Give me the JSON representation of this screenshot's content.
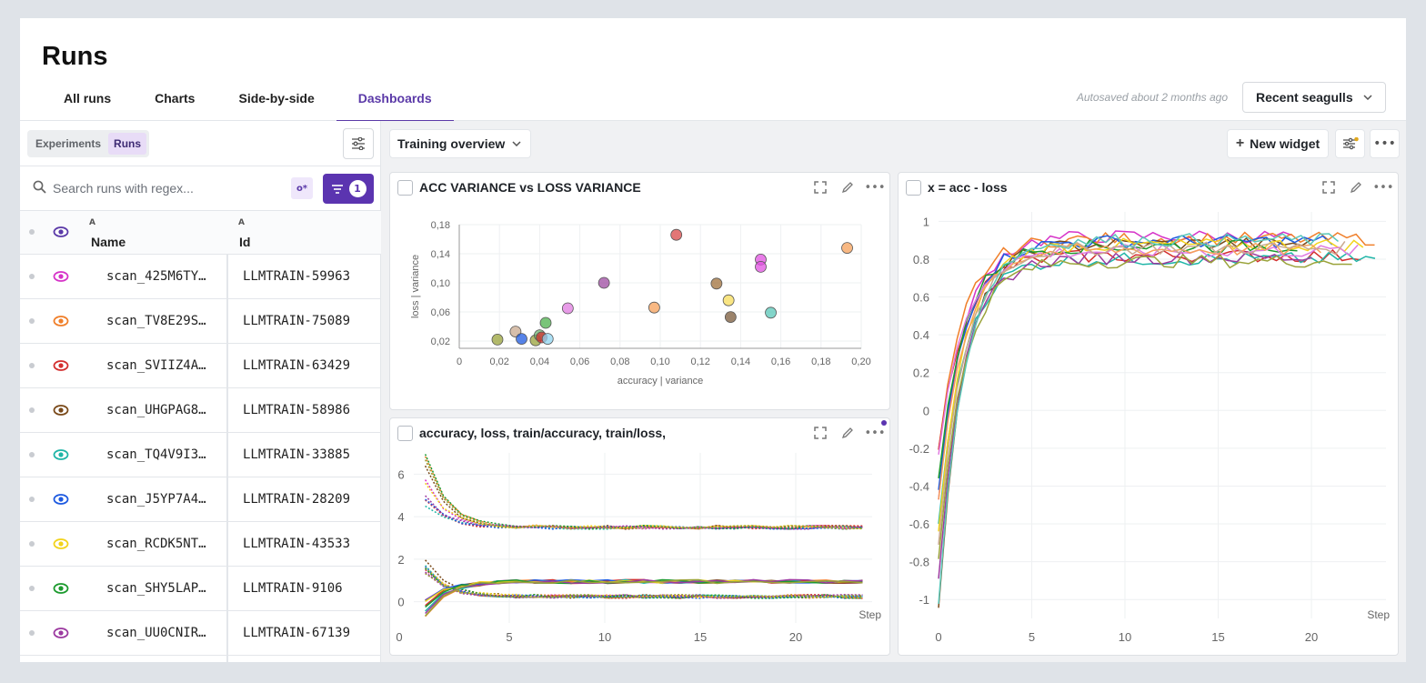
{
  "header": {
    "title": "Runs",
    "tabs": [
      {
        "label": "All runs"
      },
      {
        "label": "Charts"
      },
      {
        "label": "Side-by-side"
      },
      {
        "label": "Dashboards"
      }
    ],
    "autosave": "Autosaved about 2 months ago",
    "project": "Recent seagulls"
  },
  "sidebar": {
    "segments": [
      "Experiments",
      "Runs"
    ],
    "search_placeholder": "Search runs with regex...",
    "filter_count": "1",
    "columns": {
      "name_prefix": "A",
      "name": "Name",
      "id_prefix": "A",
      "id": "Id"
    },
    "rows": [
      {
        "name": "scan_425M6TY…",
        "id": "LLMTRAIN-59963",
        "color": "#d633c8"
      },
      {
        "name": "scan_TV8E29S…",
        "id": "LLMTRAIN-75089",
        "color": "#f07f2a"
      },
      {
        "name": "scan_SVIIZ4A…",
        "id": "LLMTRAIN-63429",
        "color": "#d32f2f"
      },
      {
        "name": "scan_UHGPAG8…",
        "id": "LLMTRAIN-58986",
        "color": "#7a4a1a"
      },
      {
        "name": "scan_TQ4V9I3…",
        "id": "LLMTRAIN-33885",
        "color": "#1fb5a7"
      },
      {
        "name": "scan_J5YP7A4…",
        "id": "LLMTRAIN-28209",
        "color": "#1e5ae0"
      },
      {
        "name": "scan_RCDK5NT…",
        "id": "LLMTRAIN-43533",
        "color": "#f2d31b"
      },
      {
        "name": "scan_SHY5LAP…",
        "id": "LLMTRAIN-9106",
        "color": "#1c9a2e"
      },
      {
        "name": "scan_UU0CNIR…",
        "id": "LLMTRAIN-67139",
        "color": "#9c3aa0"
      }
    ]
  },
  "main": {
    "dashboard": "Training overview",
    "new_widget": "New widget"
  },
  "widgets": {
    "scatter": {
      "title": "ACC VARIANCE vs LOSS VARIANCE"
    },
    "multi": {
      "title": "accuracy, loss, train/accuracy, train/loss,"
    },
    "xacc": {
      "title": "x = acc - loss"
    }
  },
  "chart_data": [
    {
      "type": "scatter",
      "title": "ACC VARIANCE vs LOSS VARIANCE",
      "xlabel": "accuracy | variance",
      "ylabel": "loss | variance",
      "xlim": [
        0,
        0.2
      ],
      "ylim": [
        0.01,
        0.18
      ],
      "xticks": [
        "0",
        "0,02",
        "0,04",
        "0,06",
        "0,08",
        "0,10",
        "0,12",
        "0,14",
        "0,16",
        "0,18",
        "0,20"
      ],
      "yticks": [
        "0,02",
        "0,06",
        "0,10",
        "0,14",
        "0,18"
      ],
      "points": [
        {
          "x": 0.019,
          "y": 0.022,
          "color": "#9aa33a"
        },
        {
          "x": 0.028,
          "y": 0.033,
          "color": "#c9a98f"
        },
        {
          "x": 0.031,
          "y": 0.023,
          "color": "#1e5ae0"
        },
        {
          "x": 0.038,
          "y": 0.021,
          "color": "#9aa33a"
        },
        {
          "x": 0.04,
          "y": 0.028,
          "color": "#6fb36f"
        },
        {
          "x": 0.041,
          "y": 0.025,
          "color": "#d32f2f"
        },
        {
          "x": 0.044,
          "y": 0.023,
          "color": "#8fd6f2"
        },
        {
          "x": 0.043,
          "y": 0.045,
          "color": "#4cb04c"
        },
        {
          "x": 0.054,
          "y": 0.065,
          "color": "#e07be0"
        },
        {
          "x": 0.072,
          "y": 0.1,
          "color": "#9c4aa0"
        },
        {
          "x": 0.097,
          "y": 0.066,
          "color": "#f5a05a"
        },
        {
          "x": 0.108,
          "y": 0.166,
          "color": "#d94848"
        },
        {
          "x": 0.128,
          "y": 0.099,
          "color": "#a0703a"
        },
        {
          "x": 0.134,
          "y": 0.076,
          "color": "#f7dc5a"
        },
        {
          "x": 0.135,
          "y": 0.053,
          "color": "#7a5a3a"
        },
        {
          "x": 0.15,
          "y": 0.132,
          "color": "#e050e0"
        },
        {
          "x": 0.15,
          "y": 0.122,
          "color": "#e050e0"
        },
        {
          "x": 0.155,
          "y": 0.059,
          "color": "#5ac7b8"
        },
        {
          "x": 0.193,
          "y": 0.148,
          "color": "#f5a05a"
        }
      ]
    },
    {
      "type": "line",
      "title": "accuracy, loss, train/accuracy, train/loss,",
      "xlabel": "Step",
      "xlim": [
        0,
        24
      ],
      "ylim": [
        -1,
        7
      ],
      "xticks": [
        "0",
        "5",
        "10",
        "15",
        "20"
      ],
      "yticks": [
        "0",
        "2",
        "4",
        "6"
      ],
      "series_colors": [
        "#d633c8",
        "#f07f2a",
        "#d32f2f",
        "#7a4a1a",
        "#1fb5a7",
        "#1e5ae0",
        "#f2d31b",
        "#1c9a2e",
        "#9c3aa0",
        "#9aa33a"
      ]
    },
    {
      "type": "line",
      "title": "x = acc - loss",
      "xlabel": "Step",
      "xlim": [
        0,
        24
      ],
      "ylim": [
        -1.1,
        1.05
      ],
      "xticks": [
        "0",
        "5",
        "10",
        "15",
        "20"
      ],
      "yticks": [
        "1",
        "0.8",
        "0.6",
        "0.4",
        "0.2",
        "0",
        "-0.2",
        "-0.4",
        "-0.6",
        "-0.8",
        "-1"
      ],
      "series_colors": [
        "#d633c8",
        "#f07f2a",
        "#d32f2f",
        "#7a4a1a",
        "#1fb5a7",
        "#1e5ae0",
        "#f2d31b",
        "#1c9a2e",
        "#9c3aa0",
        "#9aa33a",
        "#e07be0",
        "#f5a05a",
        "#c9a98f",
        "#5ac7b8"
      ]
    }
  ]
}
